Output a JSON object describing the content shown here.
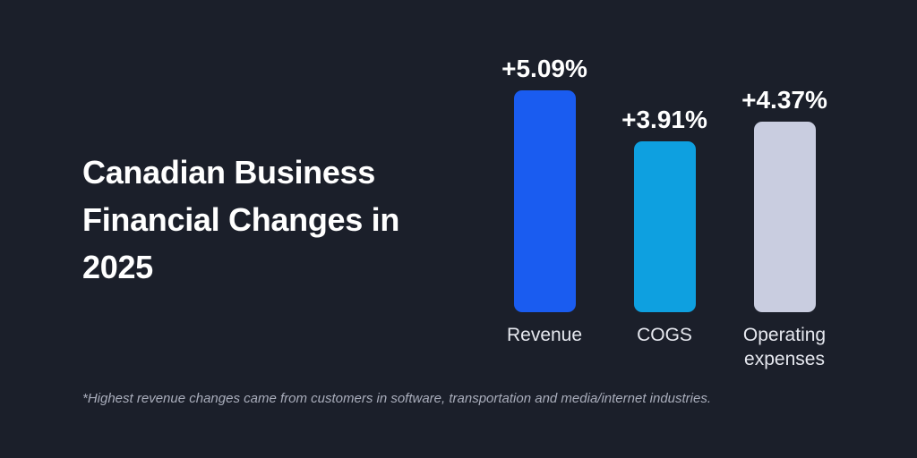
{
  "chart_data": {
    "type": "bar",
    "title": "Canadian Business Financial Changes in 2025",
    "categories": [
      "Revenue",
      "COGS",
      "Operating expenses"
    ],
    "values": [
      5.09,
      3.91,
      4.37
    ],
    "value_labels": [
      "+5.09%",
      "+3.91%",
      "+4.37%"
    ],
    "colors": [
      "#1a5cf0",
      "#0ea0e0",
      "#c9cde0"
    ],
    "footnote": "*Highest revenue changes came from customers in software, transportation and media/internet industries."
  }
}
